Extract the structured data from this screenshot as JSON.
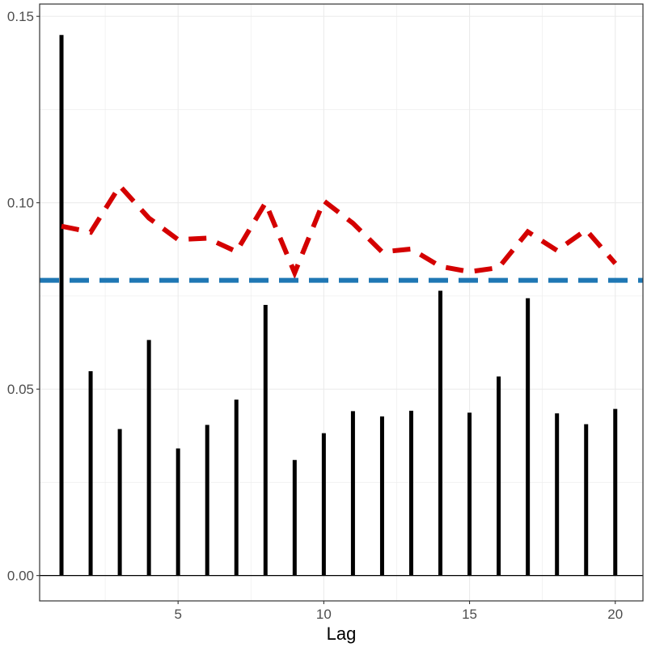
{
  "chart_data": {
    "type": "bar",
    "xlabel": "Lag",
    "ylabel": "",
    "xlim": [
      0.25,
      20.95
    ],
    "ylim": [
      -0.0068,
      0.1533
    ],
    "x_ticks": [
      5,
      10,
      15,
      20
    ],
    "y_ticks": [
      0.0,
      0.05,
      0.1,
      0.15
    ],
    "x_tick_labels": [
      "5",
      "10",
      "15",
      "20"
    ],
    "y_tick_labels": [
      "0.00",
      "0.05",
      "0.10",
      "0.15"
    ],
    "grid": true,
    "lags": [
      1,
      2,
      3,
      4,
      5,
      6,
      7,
      8,
      9,
      10,
      11,
      12,
      13,
      14,
      15,
      16,
      17,
      18,
      19,
      20
    ],
    "values": [
      0.145,
      0.0548,
      0.0393,
      0.0632,
      0.0341,
      0.0404,
      0.0472,
      0.0726,
      0.031,
      0.0382,
      0.0441,
      0.0427,
      0.0442,
      0.0764,
      0.0437,
      0.0534,
      0.0744,
      0.0435,
      0.0406,
      0.0447
    ],
    "reference_lines": [
      {
        "style": "dashed",
        "color": "#d40000",
        "x": [
          1,
          2,
          3,
          4,
          5,
          6,
          7,
          8,
          9,
          10,
          11,
          12,
          13,
          14,
          15,
          16,
          17,
          18,
          19,
          20
        ],
        "y": [
          0.0937,
          0.0921,
          0.1045,
          0.0959,
          0.0901,
          0.0905,
          0.0869,
          0.1,
          0.0812,
          0.1005,
          0.0945,
          0.0868,
          0.0876,
          0.0829,
          0.0815,
          0.0826,
          0.0922,
          0.0872,
          0.0927,
          0.0837
        ]
      },
      {
        "style": "dashed",
        "color": "#1f77b4",
        "y": 0.0792
      }
    ],
    "colors": {
      "bars": "#000000",
      "grid": "#ebebeb",
      "panel_border": "#333333",
      "zero_line": "#000000"
    }
  }
}
